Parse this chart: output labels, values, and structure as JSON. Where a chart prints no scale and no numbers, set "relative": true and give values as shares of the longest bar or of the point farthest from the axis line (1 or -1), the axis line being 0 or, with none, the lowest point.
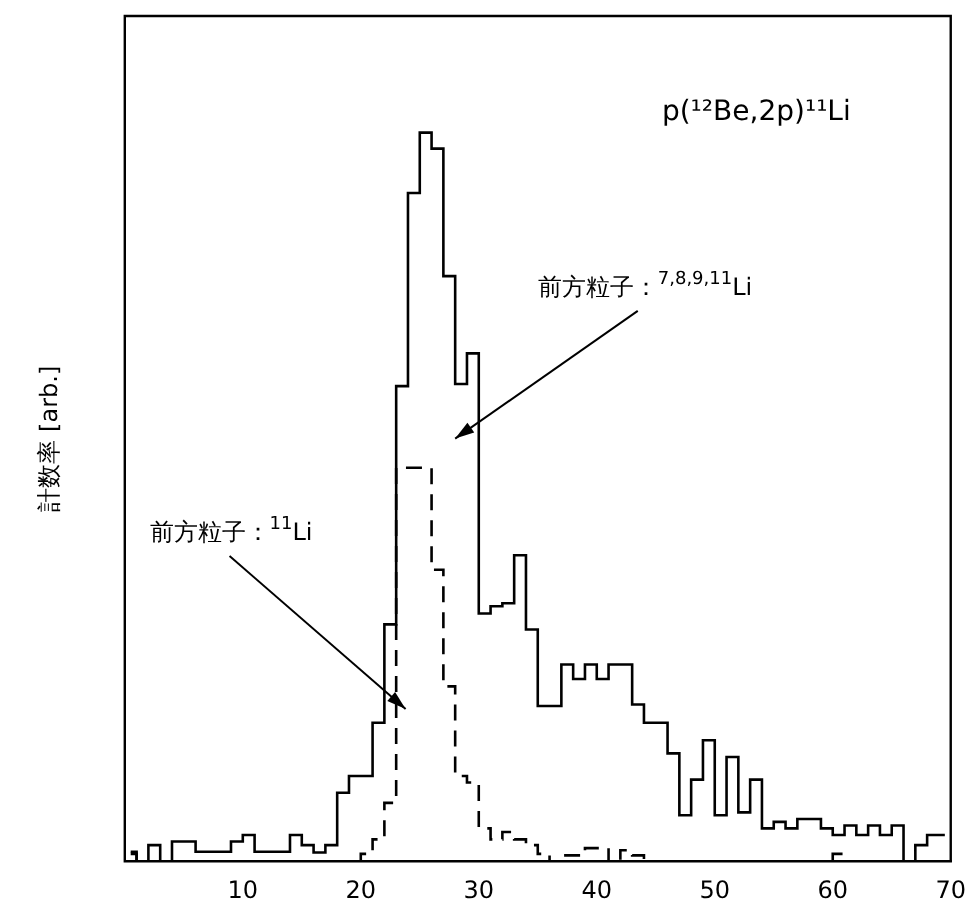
{
  "chart_data": {
    "type": "step",
    "title": "p(¹²Be,2p)¹¹Li",
    "ylabel": "計数率 [arb.]",
    "relative": true,
    "legend": false,
    "grid": false,
    "x": [
      0.5,
      1.5,
      2.5,
      3.5,
      4.5,
      5.5,
      6.5,
      7.5,
      8.5,
      9.5,
      10.5,
      11.5,
      12.5,
      13.5,
      14.5,
      15.5,
      16.5,
      17.5,
      18.5,
      19.5,
      20.5,
      21.5,
      22.5,
      23.5,
      24.5,
      25.5,
      26.5,
      27.5,
      28.5,
      29.5,
      30.5,
      31.5,
      32.5,
      33.5,
      34.5,
      35.5,
      36.5,
      37.5,
      38.5,
      39.5,
      40.5,
      41.5,
      42.5,
      43.5,
      44.5,
      45.5,
      46.5,
      47.5,
      48.5,
      49.5,
      50.5,
      51.5,
      52.5,
      53.5,
      54.5,
      55.5,
      56.5,
      57.5,
      58.5,
      59.5,
      60.5,
      61.5,
      62.5,
      63.5,
      64.5,
      65.5,
      66.5,
      67.5,
      68.5,
      69.5
    ],
    "xlim": [
      0,
      70
    ],
    "xticks": [
      10,
      20,
      30,
      40,
      50,
      60,
      70
    ],
    "series": [
      {
        "color": "#000000",
        "line_style": "solid",
        "values": [
          0.013,
          0,
          0.022,
          0,
          0.027,
          0.027,
          0.013,
          0.013,
          0.013,
          0.027,
          0.036,
          0.013,
          0.013,
          0.013,
          0.036,
          0.022,
          0.012,
          0.022,
          0.094,
          0.117,
          0.117,
          0.19,
          0.325,
          0.652,
          0.917,
          1.0,
          0.978,
          0.803,
          0.655,
          0.697,
          0.34,
          0.35,
          0.354,
          0.42,
          0.318,
          0.213,
          0.213,
          0.27,
          0.25,
          0.27,
          0.25,
          0.27,
          0.27,
          0.215,
          0.19,
          0.19,
          0.148,
          0.063,
          0.112,
          0.166,
          0.063,
          0.143,
          0.067,
          0.112,
          0.045,
          0.054,
          0.045,
          0.058,
          0.058,
          0.045,
          0.036,
          0.049,
          0.036,
          0.049,
          0.036,
          0.049,
          0,
          0.022,
          0.036,
          0.036
        ]
      },
      {
        "color": "#000000",
        "line_style": "dashed",
        "values": [
          0.01,
          0,
          0,
          0,
          0,
          0,
          0,
          0,
          0,
          0,
          0,
          0,
          0,
          0,
          0,
          0,
          0,
          0,
          0,
          0,
          0.01,
          0.03,
          0.08,
          0.54,
          0.54,
          0.54,
          0.4,
          0.24,
          0.117,
          0.108,
          0.045,
          0.03,
          0.04,
          0.03,
          0.022,
          0.01,
          0,
          0.008,
          0.008,
          0.018,
          0.018,
          0,
          0.015,
          0.008,
          0,
          0,
          0,
          0,
          0,
          0,
          0,
          0,
          0,
          0,
          0,
          0,
          0,
          0,
          0,
          0,
          0.01,
          0,
          0,
          0,
          0,
          0,
          0,
          0,
          0,
          0
        ]
      }
    ],
    "annotations": [
      "前方粒子：$^{7,8,9,11}$Li",
      "前方粒子：$^{11}$Li"
    ]
  }
}
